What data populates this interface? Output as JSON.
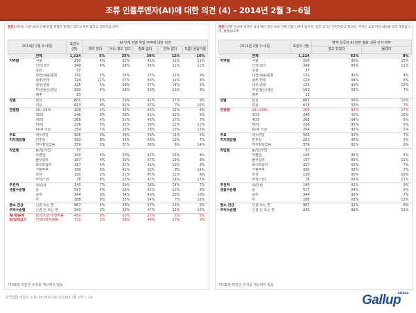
{
  "title": "조류 인플루엔자(AI)에 대한 의견 (4) - 2014년 2월 3~6일",
  "left": {
    "question_label": "질문)",
    "question_text": "귀하는 이번 AI의 인체 감염 위험이 얼마나 있다고 혹은 없다고 생각하십니까?",
    "header": {
      "corner": "2014년 2월 3~6일",
      "n": "표본수 (명)",
      "group": "AI 인체 감염 위험 여부에 대한 의견",
      "cols": [
        "매우 많다",
        "어느 정도 있다",
        "별로 없다",
        "전혀 없다",
        "모름/ 응답거절"
      ]
    },
    "rows": [
      {
        "g": "",
        "s": "전체",
        "n": "1,214",
        "v": [
          "5%",
          "35%",
          "39%",
          "12%",
          "10%"
        ],
        "total": true
      },
      {
        "g": "지역별",
        "s": "서울",
        "n": "250",
        "v": [
          "4%",
          "32%",
          "41%",
          "12%",
          "11%"
        ]
      },
      {
        "g": "",
        "s": "인천/경기",
        "n": "349",
        "v": [
          "4%",
          "38%",
          "36%",
          "11%",
          "11%"
        ]
      },
      {
        "g": "",
        "s": "강원",
        "n": "37",
        "v": [
          "",
          "",
          "",
          "",
          ""
        ]
      },
      {
        "g": "",
        "s": "대전/세종/충청",
        "n": "131",
        "v": [
          "5%",
          "39%",
          "35%",
          "12%",
          "9%"
        ]
      },
      {
        "g": "",
        "s": "광주/전라",
        "n": "124",
        "v": [
          "11%",
          "27%",
          "43%",
          "11%",
          "8%"
        ]
      },
      {
        "g": "",
        "s": "대구/경북",
        "n": "125",
        "v": [
          "5%",
          "38%",
          "37%",
          "14%",
          "6%"
        ]
      },
      {
        "g": "",
        "s": "부산/울산/경남",
        "n": "192",
        "v": [
          "4%",
          "36%",
          "36%",
          "15%",
          "9%"
        ]
      },
      {
        "g": "",
        "s": "제주",
        "n": "13",
        "v": [
          "",
          "",
          "",
          "",
          ""
        ]
      },
      {
        "g": "성별",
        "s": "남성",
        "n": "601",
        "v": [
          "4%",
          "29%",
          "41%",
          "17%",
          "9%"
        ],
        "grp": true
      },
      {
        "g": "",
        "s": "여성",
        "n": "613",
        "v": [
          "6%",
          "41%",
          "37%",
          "7%",
          "10%"
        ]
      },
      {
        "g": "연령별",
        "s": "19~29세",
        "n": "209",
        "v": [
          "4%",
          "33%",
          "43%",
          "12%",
          "8%"
        ],
        "grp": true
      },
      {
        "g": "",
        "s": "30대",
        "n": "246",
        "v": [
          "3%",
          "39%",
          "41%",
          "11%",
          "6%"
        ]
      },
      {
        "g": "",
        "s": "40대",
        "n": "269",
        "v": [
          "4%",
          "32%",
          "40%",
          "17%",
          "7%"
        ]
      },
      {
        "g": "",
        "s": "50대",
        "n": "236",
        "v": [
          "5%",
          "35%",
          "36%",
          "12%",
          "12%"
        ]
      },
      {
        "g": "",
        "s": "60세 이상",
        "n": "254",
        "v": [
          "7%",
          "29%",
          "38%",
          "10%",
          "17%"
        ]
      },
      {
        "g": "주요",
        "s": "새누리당",
        "n": "506",
        "v": [
          "5%",
          "36%",
          "39%",
          "14%",
          "6%"
        ],
        "grp": true
      },
      {
        "g": "지지정당별",
        "s": "민주당",
        "n": "252",
        "v": [
          "6%",
          "35%",
          "40%",
          "12%",
          "7%"
        ]
      },
      {
        "g": "",
        "s": "지지정당없음",
        "n": "379",
        "v": [
          "5%",
          "37%",
          "36%",
          "8%",
          "14%"
        ]
      },
      {
        "g": "직업별",
        "s": "농/임/어업",
        "n": "37",
        "v": [
          "",
          "",
          "",
          "",
          ""
        ],
        "grp": true
      },
      {
        "g": "",
        "s": "자영업",
        "n": "143",
        "v": [
          "4%",
          "30%",
          "42%",
          "16%",
          "8%"
        ]
      },
      {
        "g": "",
        "s": "블루칼라",
        "n": "157",
        "v": [
          "4%",
          "32%",
          "37%",
          "19%",
          "8%"
        ]
      },
      {
        "g": "",
        "s": "화이트칼라",
        "n": "317",
        "v": [
          "4%",
          "37%",
          "41%",
          "10%",
          "8%"
        ]
      },
      {
        "g": "",
        "s": "가정주부",
        "n": "330",
        "v": [
          "6%",
          "41%",
          "31%",
          "8%",
          "14%"
        ]
      },
      {
        "g": "",
        "s": "학생",
        "n": "120",
        "v": [
          "2%",
          "31%",
          "47%",
          "12%",
          "8%"
        ]
      },
      {
        "g": "",
        "s": "무직/기타",
        "n": "78",
        "v": [
          "8%",
          "15%",
          "41%",
          "18%",
          "17%"
        ]
      },
      {
        "g": "주관적",
        "s": "상/중상",
        "n": "140",
        "v": [
          "7%",
          "33%",
          "38%",
          "14%",
          "7%"
        ],
        "grp": true
      },
      {
        "g": "생활수준별",
        "s": "중",
        "n": "517",
        "v": [
          "4%",
          "36%",
          "41%",
          "11%",
          "8%"
        ]
      },
      {
        "g": "",
        "s": "중하",
        "n": "344",
        "v": [
          "3%",
          "34%",
          "40%",
          "13%",
          "10%"
        ]
      },
      {
        "g": "",
        "s": "하",
        "n": "188",
        "v": [
          "8%",
          "35%",
          "34%",
          "7%",
          "16%"
        ]
      },
      {
        "g": "평소 건강",
        "s": "신경 쓰는 편",
        "n": "967",
        "v": [
          "5%",
          "36%",
          "37%",
          "13%",
          "9%"
        ],
        "grp": true
      },
      {
        "g": "주의수준별",
        "s": "신경 안 쓰는 편",
        "n": "241",
        "v": [
          "2%",
          "26%",
          "47%",
          "11%",
          "13%"
        ]
      },
      {
        "g": "AI 때문에",
        "s": "닭/오리고기 덜먹음",
        "n": "450",
        "v": [
          "9%",
          "50%",
          "27%",
          "5%",
          "9%"
        ],
        "grp": true,
        "hl": true
      },
      {
        "g": "닭/오리고기",
        "s": "전과다르지않음",
        "n": "721",
        "v": [
          "2%",
          "26%",
          "46%",
          "17%",
          "9%"
        ],
        "hl": true
      }
    ],
    "footnote": "*50표본 미만은 수치를 게시하지 않음"
  },
  "right": {
    "question_label": "질문)",
    "question_text": "방역 당국에 의하면 국내 확산 중인 AI의 인체 감염 사례가 없으며, 익힌 고기는 안전하다고 합니다. 귀하는 요즘 이런 내용을 알고 계셨습니까, 몰랐습니까?",
    "header": {
      "corner": "2014년 2월 3~6일",
      "n": "표본수 (명)",
      "group": "방역 당국의 AI 관련 홍보 내용 인지 여부",
      "cols": [
        "알고 있었다",
        "몰랐다"
      ]
    },
    "rows": [
      {
        "g": "",
        "s": "전체",
        "n": "1,214",
        "v": [
          "92%",
          "8%"
        ],
        "total": true
      },
      {
        "g": "지역별",
        "s": "서울",
        "n": "250",
        "v": [
          "90%",
          "10%"
        ]
      },
      {
        "g": "",
        "s": "인천/경기",
        "n": "349",
        "v": [
          "89%",
          "11%"
        ]
      },
      {
        "g": "",
        "s": "강원",
        "n": "37",
        "v": [
          "",
          ""
        ]
      },
      {
        "g": "",
        "s": "대전/세종/충청",
        "n": "131",
        "v": [
          "96%",
          "4%"
        ]
      },
      {
        "g": "",
        "s": "광주/전라",
        "n": "124",
        "v": [
          "94%",
          "6%"
        ]
      },
      {
        "g": "",
        "s": "대구/경북",
        "n": "125",
        "v": [
          "90%",
          "10%"
        ]
      },
      {
        "g": "",
        "s": "부산/울산/경남",
        "n": "192",
        "v": [
          "93%",
          "7%"
        ]
      },
      {
        "g": "",
        "s": "제주",
        "n": "13",
        "v": [
          "",
          ""
        ]
      },
      {
        "g": "성별",
        "s": "남성",
        "n": "601",
        "v": [
          "90%",
          "10%"
        ],
        "grp": true
      },
      {
        "g": "",
        "s": "여성",
        "n": "613",
        "v": [
          "93%",
          "7%"
        ]
      },
      {
        "g": "연령별",
        "s": "19~29세",
        "n": "209",
        "v": [
          "83%",
          "17%"
        ],
        "grp": true,
        "hl": true
      },
      {
        "g": "",
        "s": "30대",
        "n": "246",
        "v": [
          "90%",
          "10%"
        ]
      },
      {
        "g": "",
        "s": "40대",
        "n": "269",
        "v": [
          "94%",
          "6%"
        ]
      },
      {
        "g": "",
        "s": "50대",
        "n": "236",
        "v": [
          "95%",
          "5%"
        ]
      },
      {
        "g": "",
        "s": "60세 이상",
        "n": "254",
        "v": [
          "95%",
          "5%"
        ]
      },
      {
        "g": "주요",
        "s": "새누리당",
        "n": "506",
        "v": [
          "93%",
          "7%"
        ],
        "grp": true
      },
      {
        "g": "지지정당별",
        "s": "민주당",
        "n": "252",
        "v": [
          "95%",
          "5%"
        ]
      },
      {
        "g": "",
        "s": "지지정당없음",
        "n": "379",
        "v": [
          "92%",
          "8%"
        ]
      },
      {
        "g": "직업별",
        "s": "농/임/어업",
        "n": "37",
        "v": [
          "",
          ""
        ],
        "grp": true
      },
      {
        "g": "",
        "s": "자영업",
        "n": "143",
        "v": [
          "95%",
          "5%"
        ]
      },
      {
        "g": "",
        "s": "블루칼라",
        "n": "157",
        "v": [
          "89%",
          "11%"
        ]
      },
      {
        "g": "",
        "s": "화이트칼라",
        "n": "317",
        "v": [
          "93%",
          "7%"
        ]
      },
      {
        "g": "",
        "s": "가정주부",
        "n": "330",
        "v": [
          "93%",
          "7%"
        ]
      },
      {
        "g": "",
        "s": "학생",
        "n": "120",
        "v": [
          "90%",
          "10%"
        ]
      },
      {
        "g": "",
        "s": "무직/기타",
        "n": "78",
        "v": [
          "88%",
          "12%"
        ]
      },
      {
        "g": "주관적",
        "s": "상/중상",
        "n": "140",
        "v": [
          "91%",
          "9%"
        ],
        "grp": true
      },
      {
        "g": "생활수준별",
        "s": "중",
        "n": "517",
        "v": [
          "94%",
          "6%"
        ]
      },
      {
        "g": "",
        "s": "중하",
        "n": "344",
        "v": [
          "93%",
          "7%"
        ]
      },
      {
        "g": "",
        "s": "하",
        "n": "188",
        "v": [
          "88%",
          "12%"
        ]
      },
      {
        "g": "평소 건강",
        "s": "신경 쓰는 편",
        "n": "967",
        "v": [
          "92%",
          "8%"
        ],
        "grp": true
      },
      {
        "g": "주의수준별",
        "s": "신경 안 쓰는 편",
        "n": "241",
        "v": [
          "88%",
          "12%"
        ]
      }
    ],
    "footnote": "*50표본 미만은 수치를 게시하지 않음"
  },
  "source": "한국갤럽 데일리 오피니언 제102호(2014년 2월 1주) - 14",
  "logo": {
    "text": "Gallup",
    "sub": "KOREA"
  },
  "colors": {
    "title_bg": "#b23a1e",
    "highlight": "#c62828",
    "logo": "#1f4e96"
  }
}
